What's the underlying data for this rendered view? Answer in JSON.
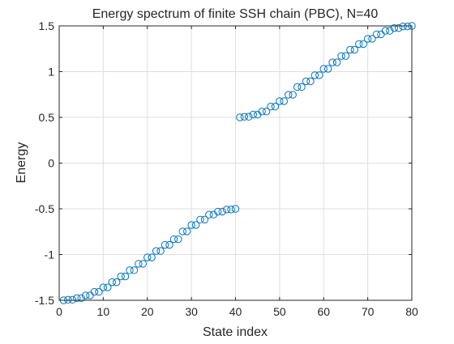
{
  "chart_data": {
    "type": "scatter",
    "title": "Energy spectrum of finite SSH chain (PBC), N=40",
    "xlabel": "State index",
    "ylabel": "Energy",
    "xlim": [
      0,
      80
    ],
    "ylim": [
      -1.5,
      1.5
    ],
    "grid": true,
    "marker": "circle-open",
    "marker_color": "#0072BD",
    "xticks": [
      0,
      10,
      20,
      30,
      40,
      50,
      60,
      70,
      80
    ],
    "xtick_labels": [
      "0",
      "10",
      "20",
      "30",
      "40",
      "50",
      "60",
      "70",
      "80"
    ],
    "yticks": [
      1.5,
      1,
      0.5,
      0,
      -0.5,
      -1,
      -1.5
    ],
    "ytick_labels": [
      "1.5",
      "1",
      "0.5",
      "0",
      "-0.5",
      "-1",
      "-1.5"
    ],
    "series": [
      {
        "x": [
          1,
          2,
          3,
          4,
          5,
          6,
          7,
          8,
          9,
          10,
          11,
          12,
          13,
          14,
          15,
          16,
          17,
          18,
          19,
          20,
          21,
          22,
          23,
          24,
          25,
          26,
          27,
          28,
          29,
          30,
          31,
          32,
          33,
          34,
          35,
          36,
          37,
          38,
          39,
          40,
          41,
          42,
          43,
          44,
          45,
          46,
          47,
          48,
          49,
          50,
          51,
          52,
          53,
          54,
          55,
          56,
          57,
          58,
          59,
          60,
          61,
          62,
          63,
          64,
          65,
          66,
          67,
          68,
          69,
          70,
          71,
          72,
          73,
          74,
          75,
          76,
          77,
          78,
          79,
          80
        ],
        "y": [
          -1.5,
          -1.494,
          -1.494,
          -1.476,
          -1.476,
          -1.447,
          -1.447,
          -1.408,
          -1.408,
          -1.359,
          -1.359,
          -1.302,
          -1.302,
          -1.239,
          -1.239,
          -1.171,
          -1.171,
          -1.101,
          -1.101,
          -1.031,
          -1.031,
          -0.961,
          -0.961,
          -0.894,
          -0.894,
          -0.832,
          -0.832,
          -0.747,
          -0.747,
          -0.677,
          -0.677,
          -0.618,
          -0.618,
          -0.564,
          -0.564,
          -0.53,
          -0.53,
          -0.507,
          -0.507,
          -0.5,
          0.5,
          0.507,
          0.507,
          0.53,
          0.53,
          0.564,
          0.564,
          0.618,
          0.618,
          0.677,
          0.677,
          0.747,
          0.747,
          0.832,
          0.832,
          0.894,
          0.894,
          0.961,
          0.961,
          1.031,
          1.031,
          1.101,
          1.101,
          1.171,
          1.171,
          1.239,
          1.239,
          1.302,
          1.302,
          1.359,
          1.359,
          1.408,
          1.408,
          1.447,
          1.447,
          1.476,
          1.476,
          1.494,
          1.494,
          1.5
        ]
      }
    ]
  }
}
